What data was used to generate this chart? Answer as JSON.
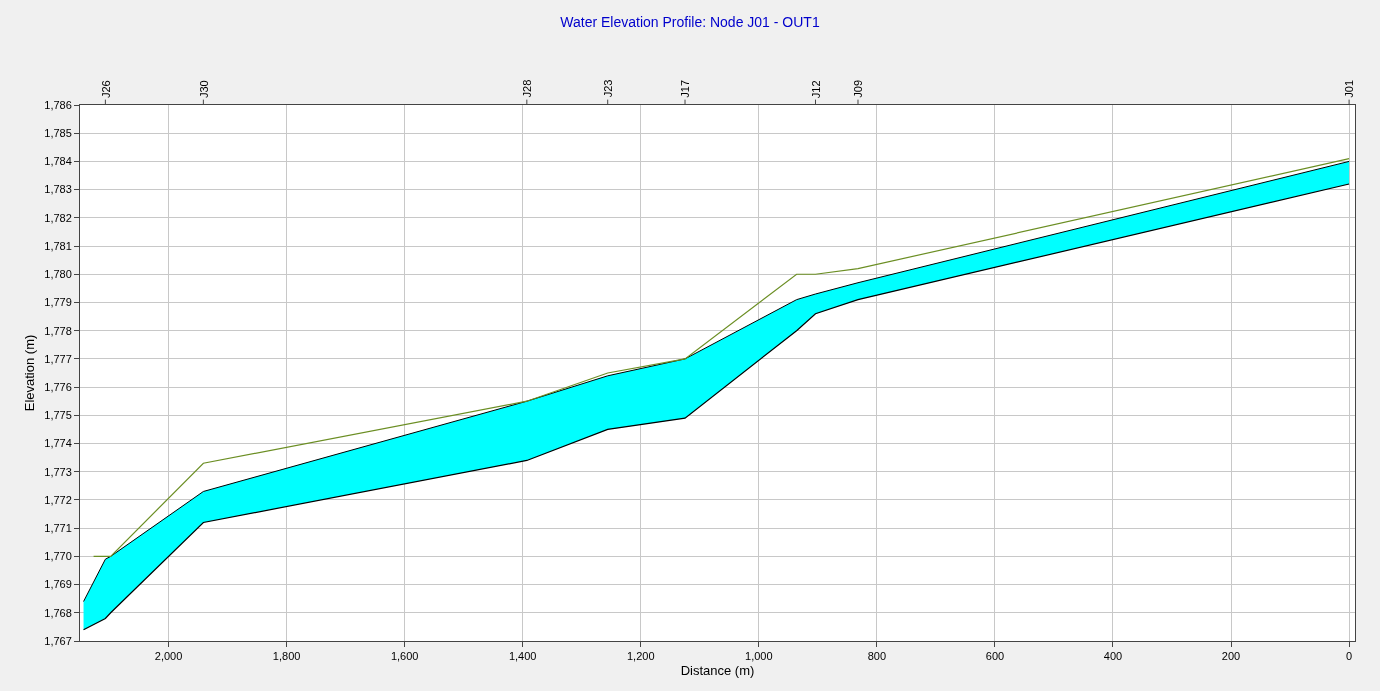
{
  "chart_data": {
    "type": "line",
    "title": "Water Elevation Profile: Node J01 - OUT1",
    "xlabel": "Distance (m)",
    "ylabel": "Elevation (m)",
    "xlim": [
      2150,
      -10
    ],
    "xticks": [
      {
        "value": 2000,
        "label": "2,000"
      },
      {
        "value": 1800,
        "label": "1,800"
      },
      {
        "value": 1600,
        "label": "1,600"
      },
      {
        "value": 1400,
        "label": "1,400"
      },
      {
        "value": 1200,
        "label": "1,200"
      },
      {
        "value": 1000,
        "label": "1,000"
      },
      800,
      600,
      400,
      200,
      0
    ],
    "annotations": [
      {
        "text": "J26",
        "x": 2107
      },
      {
        "text": "J30",
        "x": 1941
      },
      {
        "text": "J28",
        "x": 1393
      },
      {
        "text": "J23",
        "x": 1256
      },
      {
        "text": "J17",
        "x": 1125
      },
      {
        "text": "J12",
        "x": 904
      },
      {
        "text": "J09",
        "x": 832
      },
      {
        "text": "J01",
        "x": 0
      }
    ],
    "ylim": [
      1767,
      1786
    ],
    "yticks": [
      {
        "value": 1767,
        "label": "1,767"
      },
      {
        "value": 1768,
        "label": "1,768"
      },
      {
        "value": 1769,
        "label": "1,769"
      },
      {
        "value": 1770,
        "label": "1,770"
      },
      {
        "value": 1771,
        "label": "1,771"
      },
      {
        "value": 1772,
        "label": "1,772"
      },
      {
        "value": 1773,
        "label": "1,773"
      },
      {
        "value": 1774,
        "label": "1,774"
      },
      {
        "value": 1775,
        "label": "1,775"
      },
      {
        "value": 1776,
        "label": "1,776"
      },
      {
        "value": 1777,
        "label": "1,777"
      },
      {
        "value": 1778,
        "label": "1,778"
      },
      {
        "value": 1779,
        "label": "1,779"
      },
      {
        "value": 1780,
        "label": "1,780"
      },
      {
        "value": 1781,
        "label": "1,781"
      },
      {
        "value": 1782,
        "label": "1,782"
      },
      {
        "value": 1783,
        "label": "1,783"
      },
      {
        "value": 1784,
        "label": "1,784"
      },
      {
        "value": 1785,
        "label": "1,785"
      },
      {
        "value": 1786,
        "label": "1,786"
      }
    ],
    "grid": true,
    "marker": "none",
    "series": [
      {
        "color": "#000000",
        "x": [
          2144,
          2107,
          2098,
          1941,
          1393,
          1256,
          1125,
          936,
          904,
          832,
          0
        ],
        "values": [
          1767.4,
          1767.8,
          1768.0,
          1771.2,
          1773.4,
          1774.5,
          1774.9,
          1778.0,
          1778.6,
          1779.1,
          1783.2
        ]
      },
      {
        "type": "area",
        "color": "#00ffff",
        "x": [
          2144,
          2107,
          2098,
          1941,
          1393,
          1256,
          1125,
          936,
          904,
          832,
          0
        ],
        "values": [
          1768.4,
          1769.9,
          1770.0,
          1772.3,
          1775.5,
          1776.4,
          1777.0,
          1779.1,
          1779.3,
          1779.7,
          1784.0
        ]
      },
      {
        "color": "#6b8e23",
        "x": [
          2127,
          2107,
          2098,
          1941,
          1393,
          1256,
          1125,
          936,
          904,
          832,
          0
        ],
        "values": [
          1770.0,
          1770.0,
          1770.0,
          1773.3,
          1775.5,
          1776.5,
          1777.0,
          1780.0,
          1780.0,
          1780.2,
          1784.1
        ]
      }
    ]
  }
}
